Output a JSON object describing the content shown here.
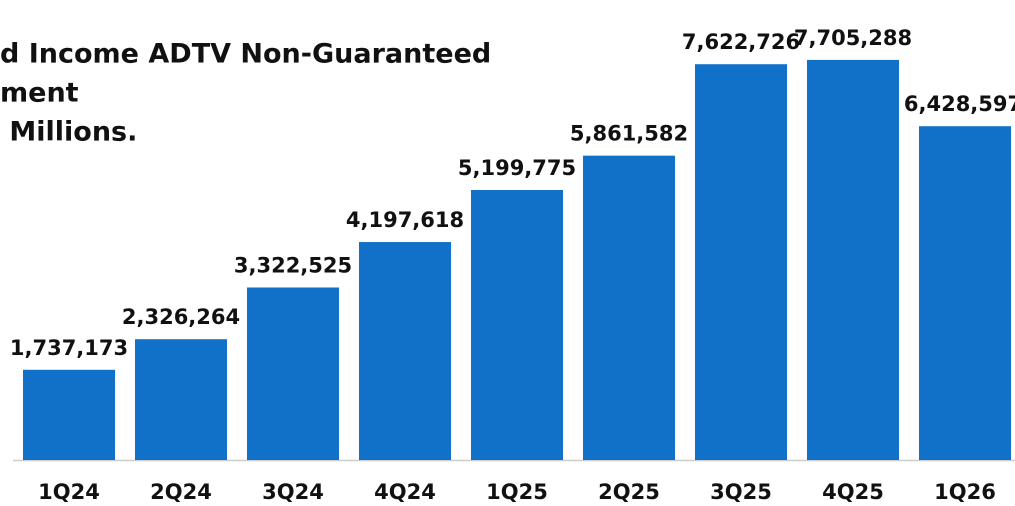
{
  "chart_data": {
    "type": "bar",
    "title": [
      "d Income ADTV Non-Guaranteed",
      "ment",
      " Millions."
    ],
    "categories": [
      "1Q24",
      "2Q24",
      "3Q24",
      "4Q24",
      "1Q25",
      "2Q25",
      "3Q25",
      "4Q25",
      "1Q26"
    ],
    "values": [
      1737173,
      2326264,
      3322525,
      4197618,
      5199775,
      5861582,
      7622726,
      7705288,
      6428597
    ],
    "value_labels": [
      "1,737,173",
      "2,326,264",
      "3,322,525",
      "4,197,618",
      "5,199,775",
      "5,861,582",
      "7,622,726",
      "7,705,288",
      "6,428,597"
    ],
    "color": "#1170c8",
    "ylim": [
      0,
      7800000
    ]
  }
}
